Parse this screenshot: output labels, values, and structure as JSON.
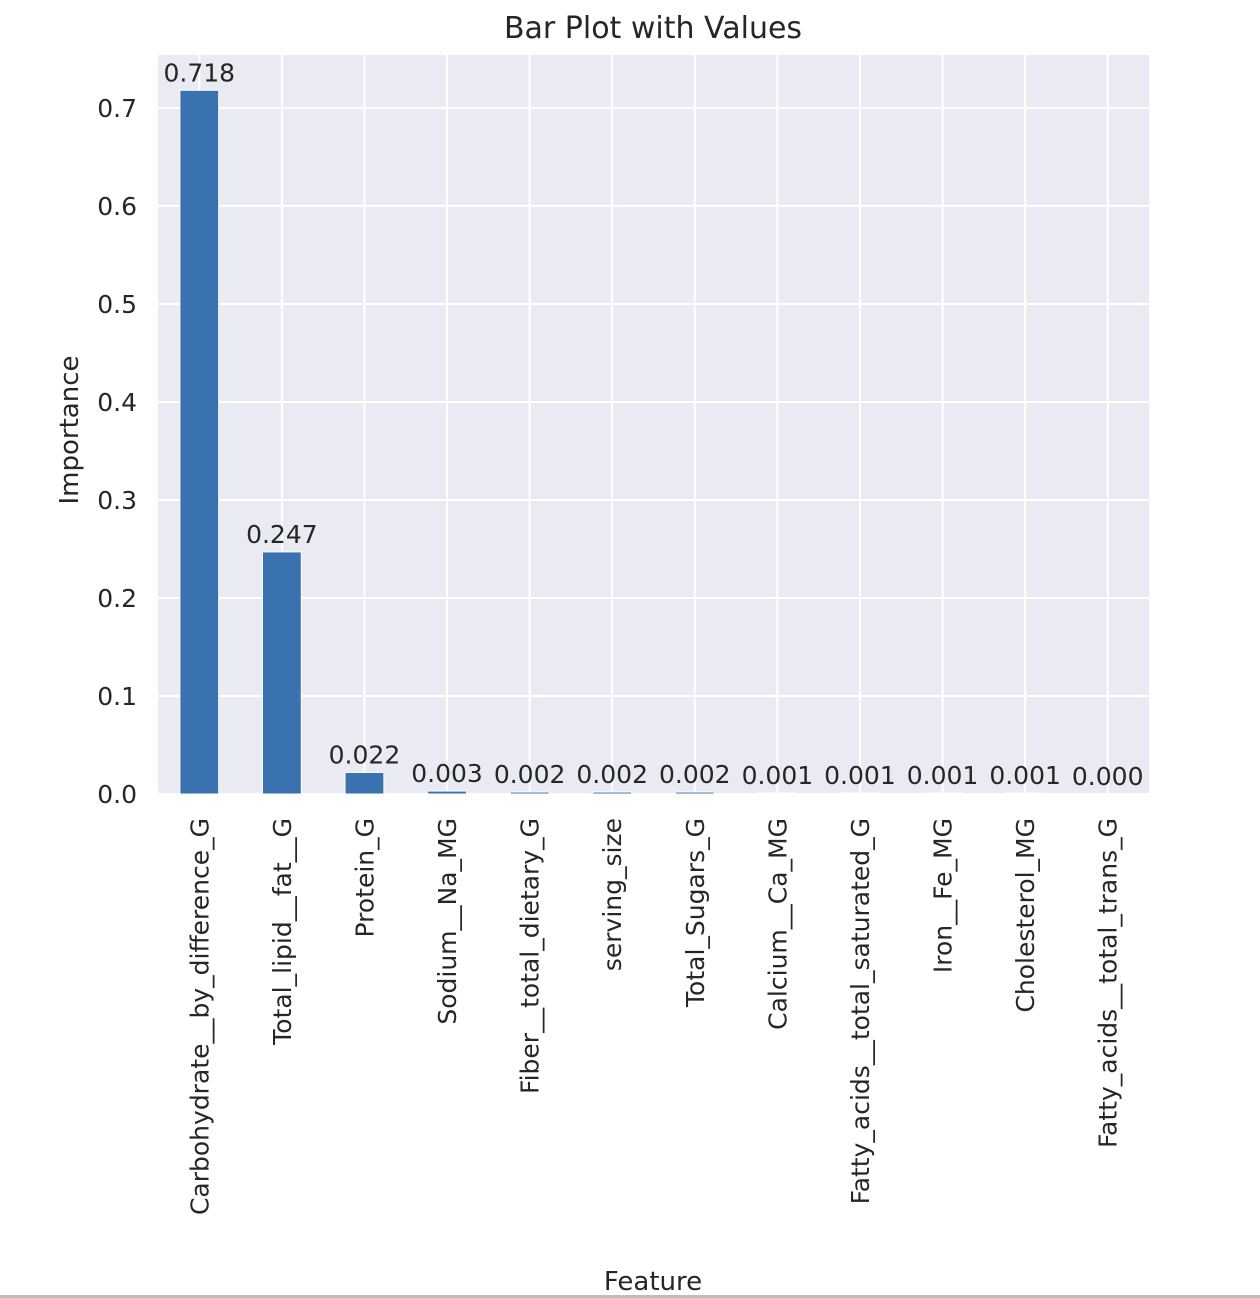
{
  "chart_data": {
    "type": "bar",
    "title": "Bar Plot with Values",
    "xlabel": "Feature",
    "ylabel": "Importance",
    "categories": [
      "Carbohydrate__by_difference_G",
      "Total_lipid__fat__G",
      "Protein_G",
      "Sodium__Na_MG",
      "Fiber__total_dietary_G",
      "serving_size",
      "Total_Sugars_G",
      "Calcium__Ca_MG",
      "Fatty_acids__total_saturated_G",
      "Iron__Fe_MG",
      "Cholesterol_MG",
      "Fatty_acids__total_trans_G"
    ],
    "values": [
      0.718,
      0.247,
      0.022,
      0.003,
      0.002,
      0.002,
      0.002,
      0.001,
      0.001,
      0.001,
      0.001,
      0.0
    ],
    "value_labels": [
      "0.718",
      "0.247",
      "0.022",
      "0.003",
      "0.002",
      "0.002",
      "0.002",
      "0.001",
      "0.001",
      "0.001",
      "0.001",
      "0.000"
    ],
    "yticks": [
      0.0,
      0.1,
      0.2,
      0.3,
      0.4,
      0.5,
      0.6,
      0.7
    ],
    "ytick_labels": [
      "0.0",
      "0.1",
      "0.2",
      "0.3",
      "0.4",
      "0.5",
      "0.6",
      "0.7"
    ],
    "ylim": [
      0,
      0.754
    ],
    "grid": true,
    "legend": "none",
    "colors": {
      "bar": "#3a72b0",
      "plot_background": "#eaeaf2",
      "grid": "#ffffff",
      "text": "#262626"
    }
  }
}
